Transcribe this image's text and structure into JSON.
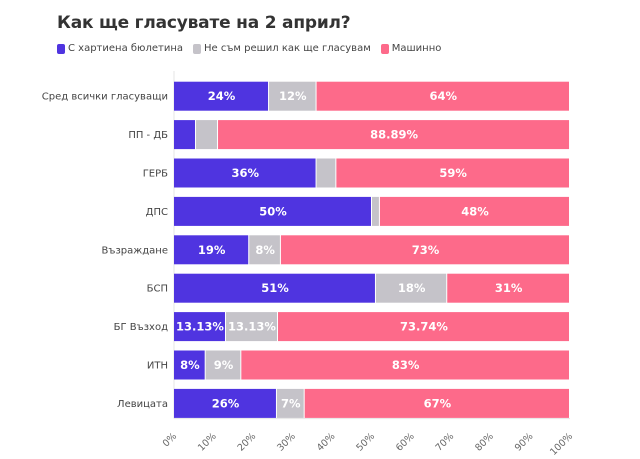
{
  "chart_data": {
    "type": "bar",
    "orientation": "horizontal",
    "stacked": true,
    "title": "Как ще гласувате на 2 април?",
    "xlabel": "",
    "ylabel": "",
    "xlim": [
      0,
      100
    ],
    "legend_position": "top-left",
    "categories": [
      "Сред всички гласуващи",
      "ПП - ДБ",
      "ГЕРБ",
      "ДПС",
      "Възраждане",
      "БСП",
      "БГ Възход",
      "ИТН",
      "Левицата"
    ],
    "series": [
      {
        "name": "С хартиена бюлетина",
        "color": "#4f34e0",
        "values": [
          24,
          5.56,
          36,
          50,
          19,
          51,
          13.13,
          8,
          26
        ],
        "labels": [
          "24%",
          "",
          "36%",
          "50%",
          "19%",
          "51%",
          "13.13%",
          "8%",
          "26%"
        ]
      },
      {
        "name": "Не съм решил как ще гласувам",
        "color": "#c5c3c9",
        "values": [
          12,
          5.56,
          5,
          2,
          8,
          18,
          13.13,
          9,
          7
        ],
        "labels": [
          "12%",
          "",
          "",
          "",
          "8%",
          "18%",
          "13.13%",
          "9%",
          "7%"
        ]
      },
      {
        "name": "Машинно",
        "color": "#fd6a8a",
        "values": [
          64,
          88.89,
          59,
          48,
          73,
          31,
          73.74,
          83,
          67
        ],
        "labels": [
          "64%",
          "88.89%",
          "59%",
          "48%",
          "73%",
          "31%",
          "73.74%",
          "83%",
          "67%"
        ]
      }
    ],
    "x_ticks": [
      "0%",
      "10%",
      "20%",
      "30%",
      "40%",
      "50%",
      "60%",
      "70%",
      "80%",
      "90%",
      "100%"
    ],
    "x_tick_values": [
      0,
      10,
      20,
      30,
      40,
      50,
      60,
      70,
      80,
      90,
      100
    ]
  }
}
